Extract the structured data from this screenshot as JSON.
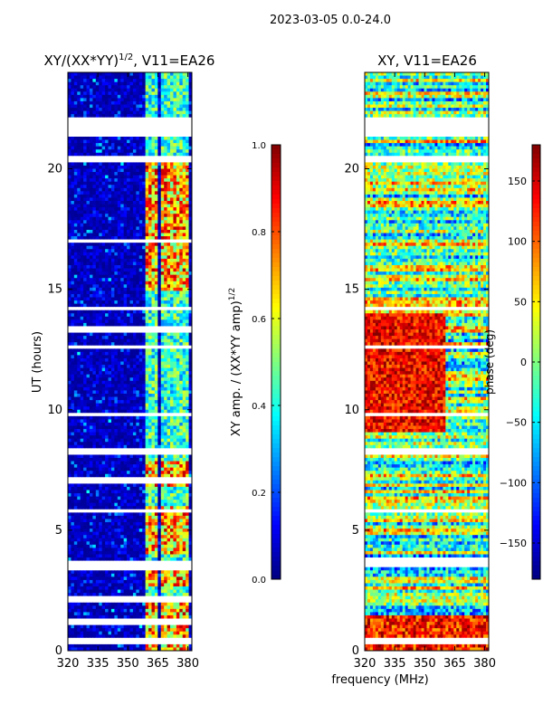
{
  "suptitle": "2023-03-05 0.0-24.0",
  "xlabel_shared": "frequency (MHz)",
  "chart_data": [
    {
      "type": "heatmap",
      "id": "amp",
      "title_main": "XY/(XX*YY)",
      "title_exp": "1/2",
      "title_tail": ", V11=EA26",
      "ylabel": "UT (hours)",
      "xlim": [
        320,
        382
      ],
      "ylim": [
        0,
        24
      ],
      "xticks": [
        320,
        335,
        350,
        365,
        380
      ],
      "yticks": [
        0,
        5,
        10,
        15,
        20
      ],
      "colorbar": {
        "label_main": "XY amp. / (XX*YY amp)",
        "label_exp": "1/2",
        "ticks": [
          "0.0",
          "0.2",
          "0.4",
          "0.6",
          "0.8",
          "1.0"
        ],
        "range": [
          0,
          1
        ]
      },
      "active_bands_mhz": [
        [
          359,
          363
        ],
        [
          363,
          365
        ],
        [
          366,
          369
        ],
        [
          370,
          374
        ],
        [
          375,
          378
        ],
        [
          378,
          380
        ]
      ],
      "bright_windows_hours": [
        [
          2.7,
          3.5
        ],
        [
          4.0,
          6.0
        ],
        [
          6.8,
          7.8
        ],
        [
          15.0,
          20.4
        ],
        [
          0.0,
          2.0
        ]
      ],
      "gap_rows_hours": [
        0.4,
        1.2,
        2.1,
        3.5,
        3.6,
        5.8,
        7.1,
        8.3,
        9.8,
        12.6,
        13.3,
        14.2,
        17.0,
        20.4,
        21.5,
        22.0,
        21.9
      ]
    },
    {
      "type": "heatmap",
      "id": "phase",
      "title_main": "XY, V11=EA26",
      "ylabel": "",
      "xlim": [
        320,
        382
      ],
      "ylim": [
        0,
        24
      ],
      "xticks": [
        320,
        335,
        350,
        365,
        380
      ],
      "yticks": [
        0,
        5,
        10,
        15,
        20
      ],
      "colorbar": {
        "label_main": "phase (deg)",
        "ticks": [
          "150",
          "100",
          "50",
          "0",
          "−50",
          "−100",
          "−150"
        ],
        "range": [
          -180,
          180
        ]
      },
      "gap_rows_hours": [
        0.4,
        3.6,
        3.7,
        5.8,
        8.3,
        9.8,
        12.6,
        14.2,
        20.4,
        21.5,
        22.0
      ]
    }
  ]
}
